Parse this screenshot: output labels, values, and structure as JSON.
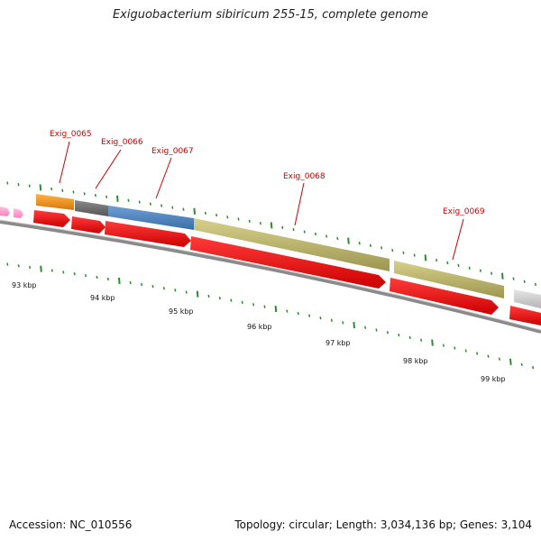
{
  "title": "Exiguobacterium sibiricum 255-15, complete genome",
  "footer": {
    "accession": "Accession: NC_010556",
    "summary": "Topology: circular; Length: 3,034,136 bp; Genes: 3,104"
  },
  "colors": {
    "gene_label": "#cc0000",
    "cds_arrow": "#ff0000",
    "backbone": "#888888",
    "tick": "#2e8b2e",
    "feature_orange": "#f7941d",
    "feature_dark_gray": "#6e6e6e",
    "feature_blue": "#4f81bd",
    "feature_khaki": "#bdb76b",
    "feature_light_gray": "#cccccc",
    "feature_pink": "#ff99cc"
  },
  "gene_labels": [
    {
      "text": "Exig_0065"
    },
    {
      "text": "Exig_0066"
    },
    {
      "text": "Exig_0067"
    },
    {
      "text": "Exig_0068"
    },
    {
      "text": "Exig_0069"
    }
  ],
  "kbp_labels": [
    "93 kbp",
    "94 kbp",
    "95 kbp",
    "96 kbp",
    "97 kbp",
    "98 kbp",
    "99 kbp"
  ],
  "features": [
    {
      "name": "feature-pink",
      "color": "pink"
    },
    {
      "name": "Exig_0065",
      "color": "orange"
    },
    {
      "name": "Exig_0066",
      "color": "dark_gray"
    },
    {
      "name": "Exig_0067",
      "color": "blue"
    },
    {
      "name": "Exig_0068",
      "color": "khaki"
    },
    {
      "name": "Exig_0069",
      "color": "khaki"
    },
    {
      "name": "feature-next",
      "color": "light_gray"
    }
  ]
}
